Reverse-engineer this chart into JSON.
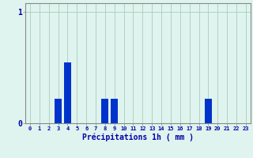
{
  "hours": [
    0,
    1,
    2,
    3,
    4,
    5,
    6,
    7,
    8,
    9,
    10,
    11,
    12,
    13,
    14,
    15,
    16,
    17,
    18,
    19,
    20,
    21,
    22,
    23
  ],
  "values": [
    0,
    0,
    0,
    0.22,
    0.55,
    0,
    0,
    0,
    0.22,
    0.22,
    0,
    0,
    0,
    0,
    0,
    0,
    0,
    0,
    0,
    0.22,
    0,
    0,
    0,
    0
  ],
  "bar_color": "#0033cc",
  "background_color": "#dff4ee",
  "grid_color": "#aaccbb",
  "spine_color": "#888888",
  "xlabel": "Précipitations 1h ( mm )",
  "xlabel_color": "#0000aa",
  "tick_color": "#0000aa",
  "ytick_labels": [
    "0",
    "1"
  ],
  "ytick_values": [
    0,
    1
  ],
  "ylim": [
    0,
    1.08
  ],
  "xlim": [
    -0.5,
    23.5
  ],
  "bar_width": 0.75
}
